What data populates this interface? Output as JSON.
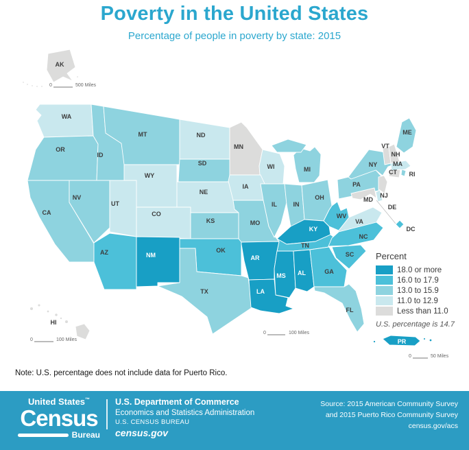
{
  "header": {
    "title": "Poverty in the United States",
    "subtitle": "Percentage of people in poverty by state: 2015"
  },
  "note": "Note: U.S. percentage does not include data for Puerto Rico.",
  "scale_bars": {
    "alaska": {
      "start": "0",
      "label": "500 Miles"
    },
    "hawaii": {
      "start": "0",
      "label": "100 Miles"
    },
    "main": {
      "start": "0",
      "label": "100 Miles"
    },
    "puerto_rico": {
      "start": "0",
      "label": "50 Miles"
    }
  },
  "footer": {
    "logo": {
      "top": "United States",
      "tm": "™",
      "big": "Census",
      "bureau": "Bureau"
    },
    "dept_line1": "U.S. Department of Commerce",
    "dept_line2": "Economics and Statistics Administration",
    "dept_line3": "U.S. CENSUS BUREAU",
    "dept_line4": "census.gov",
    "source_line1": "Source: 2015 American Community Survey",
    "source_line2": "and 2015 Puerto Rico Community Survey",
    "source_line3": "census.gov/acs"
  },
  "chart_data": {
    "type": "heatmap",
    "subtype": "choropleth-us-states",
    "title": "Poverty in the United States",
    "subtitle": "Percentage of people in poverty by state: 2015",
    "legend_title": "Percent",
    "categories": [
      "18.0 or more",
      "16.0 to 17.9",
      "13.0 to 15.9",
      "11.0 to 12.9",
      "Less than 11.0"
    ],
    "colors": [
      "#189fc5",
      "#4cc0d9",
      "#8ed3df",
      "#c9e8ee",
      "#dcdcdb"
    ],
    "us_note": "U.S. percentage is 14.7",
    "us_percentage": 14.7,
    "states": [
      {
        "abbr": "WA",
        "category": "11.0 to 12.9"
      },
      {
        "abbr": "OR",
        "category": "13.0 to 15.9"
      },
      {
        "abbr": "CA",
        "category": "13.0 to 15.9"
      },
      {
        "abbr": "NV",
        "category": "13.0 to 15.9"
      },
      {
        "abbr": "ID",
        "category": "13.0 to 15.9"
      },
      {
        "abbr": "MT",
        "category": "13.0 to 15.9"
      },
      {
        "abbr": "WY",
        "category": "11.0 to 12.9"
      },
      {
        "abbr": "UT",
        "category": "11.0 to 12.9"
      },
      {
        "abbr": "CO",
        "category": "11.0 to 12.9"
      },
      {
        "abbr": "AZ",
        "category": "16.0 to 17.9"
      },
      {
        "abbr": "NM",
        "category": "18.0 or more"
      },
      {
        "abbr": "ND",
        "category": "11.0 to 12.9"
      },
      {
        "abbr": "SD",
        "category": "13.0 to 15.9"
      },
      {
        "abbr": "NE",
        "category": "11.0 to 12.9"
      },
      {
        "abbr": "KS",
        "category": "13.0 to 15.9"
      },
      {
        "abbr": "OK",
        "category": "16.0 to 17.9"
      },
      {
        "abbr": "TX",
        "category": "13.0 to 15.9"
      },
      {
        "abbr": "MN",
        "category": "Less than 11.0"
      },
      {
        "abbr": "IA",
        "category": "11.0 to 12.9"
      },
      {
        "abbr": "MO",
        "category": "13.0 to 15.9"
      },
      {
        "abbr": "WI",
        "category": "11.0 to 12.9"
      },
      {
        "abbr": "IL",
        "category": "13.0 to 15.9"
      },
      {
        "abbr": "IN",
        "category": "13.0 to 15.9"
      },
      {
        "abbr": "MI",
        "category": "13.0 to 15.9"
      },
      {
        "abbr": "OH",
        "category": "13.0 to 15.9"
      },
      {
        "abbr": "KY",
        "category": "18.0 or more"
      },
      {
        "abbr": "TN",
        "category": "16.0 to 17.9"
      },
      {
        "abbr": "AR",
        "category": "18.0 or more"
      },
      {
        "abbr": "LA",
        "category": "18.0 or more"
      },
      {
        "abbr": "MS",
        "category": "18.0 or more"
      },
      {
        "abbr": "AL",
        "category": "18.0 or more"
      },
      {
        "abbr": "GA",
        "category": "16.0 to 17.9"
      },
      {
        "abbr": "FL",
        "category": "13.0 to 15.9"
      },
      {
        "abbr": "SC",
        "category": "16.0 to 17.9"
      },
      {
        "abbr": "NC",
        "category": "16.0 to 17.9"
      },
      {
        "abbr": "VA",
        "category": "11.0 to 12.9"
      },
      {
        "abbr": "WV",
        "category": "16.0 to 17.9"
      },
      {
        "abbr": "PA",
        "category": "13.0 to 15.9"
      },
      {
        "abbr": "NY",
        "category": "13.0 to 15.9"
      },
      {
        "abbr": "NJ",
        "category": "Less than 11.0"
      },
      {
        "abbr": "DE",
        "category": "11.0 to 12.9"
      },
      {
        "abbr": "MD",
        "category": "Less than 11.0"
      },
      {
        "abbr": "DC",
        "category": "16.0 to 17.9"
      },
      {
        "abbr": "VT",
        "category": "Less than 11.0"
      },
      {
        "abbr": "NH",
        "category": "Less than 11.0"
      },
      {
        "abbr": "MA",
        "category": "11.0 to 12.9"
      },
      {
        "abbr": "CT",
        "category": "Less than 11.0"
      },
      {
        "abbr": "RI",
        "category": "13.0 to 15.9"
      },
      {
        "abbr": "ME",
        "category": "13.0 to 15.9"
      },
      {
        "abbr": "AK",
        "category": "Less than 11.0"
      },
      {
        "abbr": "HI",
        "category": "Less than 11.0"
      },
      {
        "abbr": "PR",
        "category": "18.0 or more"
      }
    ]
  }
}
